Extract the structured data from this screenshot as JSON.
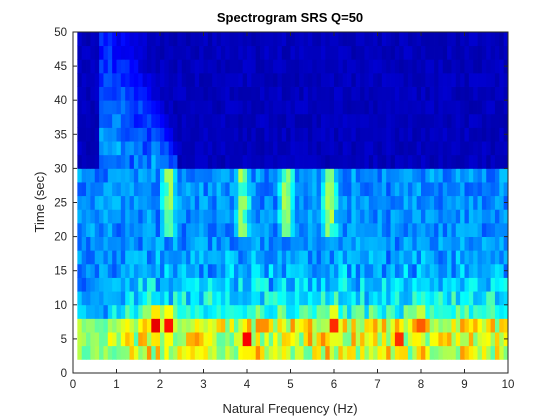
{
  "chart_data": {
    "type": "heatmap",
    "title": "Spectrogram SRS Q=50",
    "xlabel": "Natural Frequency (Hz)",
    "ylabel": "Time (sec)",
    "xlim": [
      0,
      10
    ],
    "ylim": [
      0,
      50
    ],
    "x_ticks": [
      "0",
      "1",
      "2",
      "3",
      "4",
      "5",
      "6",
      "7",
      "8",
      "9",
      "10"
    ],
    "y_ticks": [
      "0",
      "5",
      "10",
      "15",
      "20",
      "25",
      "30",
      "35",
      "40",
      "45",
      "50"
    ],
    "colormap": "jet",
    "background_color": "#ffffff",
    "data_extent": {
      "x": [
        0.1,
        10
      ],
      "y": [
        2,
        50
      ]
    },
    "time_bins": [
      2,
      4,
      6,
      8,
      10,
      12,
      14,
      16,
      18,
      20,
      22,
      24,
      26,
      28,
      30,
      32,
      34,
      36,
      38,
      40,
      42,
      44,
      46,
      48,
      50
    ],
    "frequency_bin_step": 0.1,
    "shock_interval": [
      0,
      30
    ],
    "hot_regions": [
      {
        "freq": 1.9,
        "time": 7,
        "level": 0.97
      },
      {
        "freq": 2.2,
        "time": 7,
        "level": 0.93
      },
      {
        "freq": 4.0,
        "time": 5,
        "level": 0.95
      },
      {
        "freq": 6.0,
        "time": 7,
        "level": 0.9
      },
      {
        "freq": 7.5,
        "time": 5,
        "level": 0.9
      },
      {
        "freq": 8.0,
        "time": 7,
        "level": 0.85
      }
    ]
  }
}
